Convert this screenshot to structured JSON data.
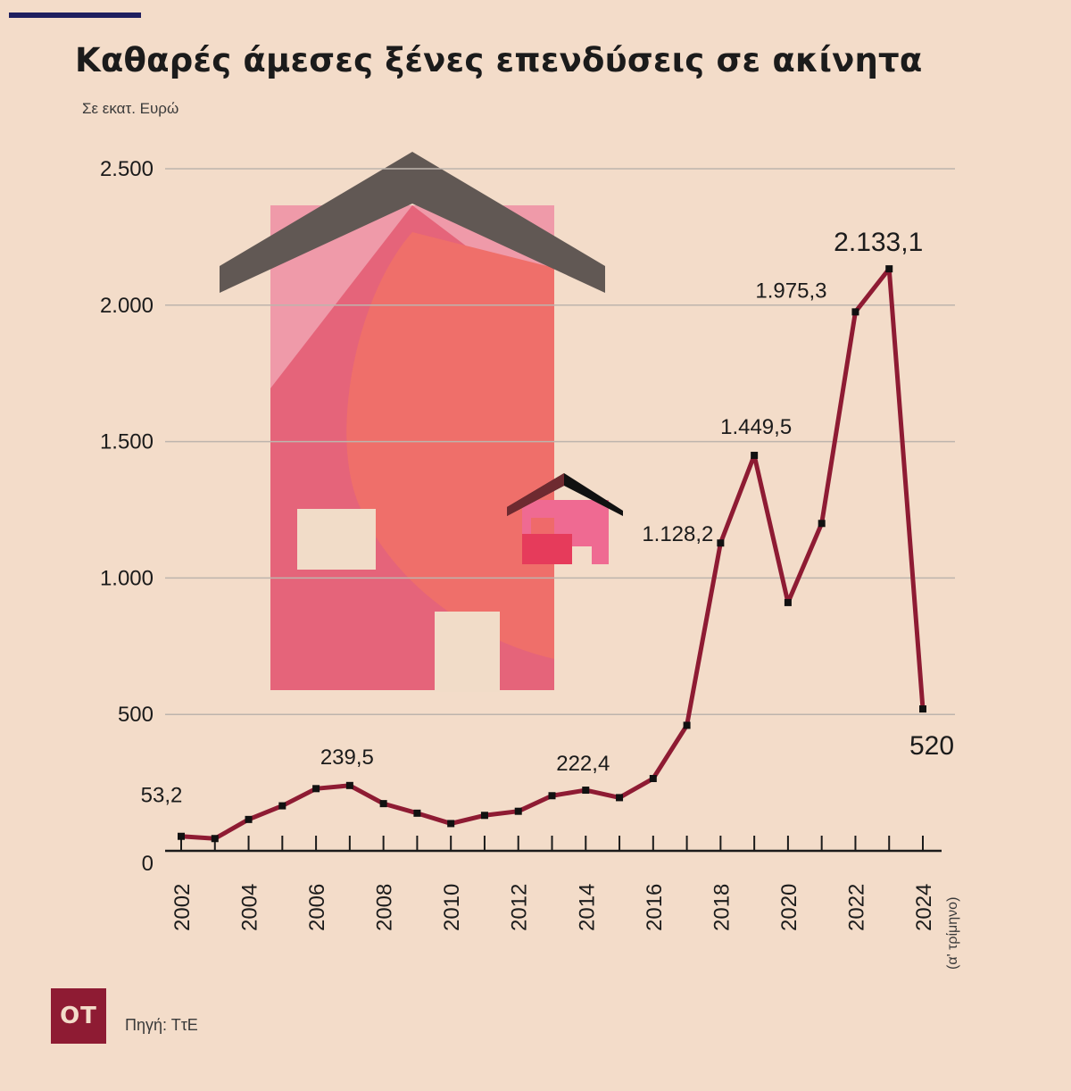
{
  "title": "Καθαρές άμεσες ξένες επενδύσεις σε ακίνητα",
  "subtitle": "Σε εκατ. Ευρώ",
  "logo_text": "OT",
  "source": "Πηγή: ΤτΕ",
  "colors": {
    "background": "#f3dcc9",
    "line": "#8e1b33",
    "marker": "#111111",
    "grid": "#bdb4ad",
    "top_rule": "#1f1f5f"
  },
  "chart_data": {
    "type": "line",
    "title": "Καθαρές άμεσες ξένες επενδύσεις σε ακίνητα",
    "ylabel": "Σε εκατ. Ευρώ",
    "ylim": [
      0,
      2500
    ],
    "grid": "horizontal",
    "y_ticks": [
      0,
      500,
      1000,
      1500,
      2000,
      2500
    ],
    "y_tick_labels": [
      "0",
      "500",
      "1.000",
      "1.500",
      "2.000",
      "2.500"
    ],
    "x_tick_labels": [
      "2002",
      "2004",
      "2006",
      "2008",
      "2010",
      "2012",
      "2014",
      "2016",
      "2018",
      "2020",
      "2022",
      "2024"
    ],
    "x_note": "(α' τρίμηνο)",
    "series": [
      {
        "x": [
          2002,
          2003,
          2004,
          2005,
          2006,
          2007,
          2008,
          2009,
          2010,
          2011,
          2012,
          2013,
          2014,
          2015,
          2016,
          2017,
          2018,
          2019,
          2020,
          2021,
          2022,
          2023,
          2024
        ],
        "values": [
          53.2,
          45,
          115,
          165,
          228,
          239.5,
          173,
          138,
          100,
          130,
          145,
          202,
          222.4,
          195,
          265,
          460,
          1128.2,
          1449.5,
          910,
          1200,
          1975.3,
          2133.1,
          520
        ]
      }
    ],
    "annotations": [
      {
        "x": 2002,
        "label": "53,2"
      },
      {
        "x": 2007,
        "label": "239,5"
      },
      {
        "x": 2014,
        "label": "222,4"
      },
      {
        "x": 2018,
        "label": "1.128,2"
      },
      {
        "x": 2019,
        "label": "1.449,5"
      },
      {
        "x": 2022,
        "label": "1.975,3"
      },
      {
        "x": 2023,
        "label": "2.133,1"
      },
      {
        "x": 2024,
        "label": "520"
      }
    ]
  }
}
